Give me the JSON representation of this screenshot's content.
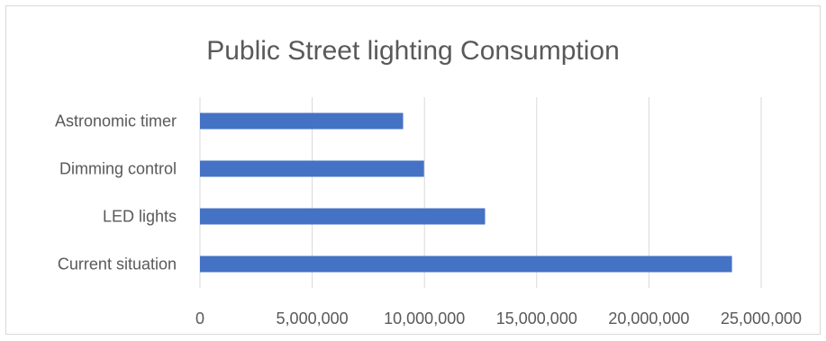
{
  "chart_data": {
    "type": "bar",
    "orientation": "horizontal",
    "title": "Public Street lighting Consumption",
    "xlabel": "",
    "ylabel": "",
    "categories": [
      "Astronomic timer",
      "Dimming control",
      "LED lights",
      "Current situation"
    ],
    "values": [
      9050000,
      9980000,
      12700000,
      23700000
    ],
    "xlim": [
      0,
      25000000
    ],
    "x_ticks": [
      "0",
      "5,000,000",
      "10,000,000",
      "15,000,000",
      "20,000,000",
      "25,000,000"
    ],
    "x_tick_values": [
      0,
      5000000,
      10000000,
      15000000,
      20000000,
      25000000
    ],
    "grid": true,
    "legend": "none",
    "colors": {
      "bar": "#4472c4",
      "grid": "#d9d9d9",
      "text": "#595959"
    }
  }
}
